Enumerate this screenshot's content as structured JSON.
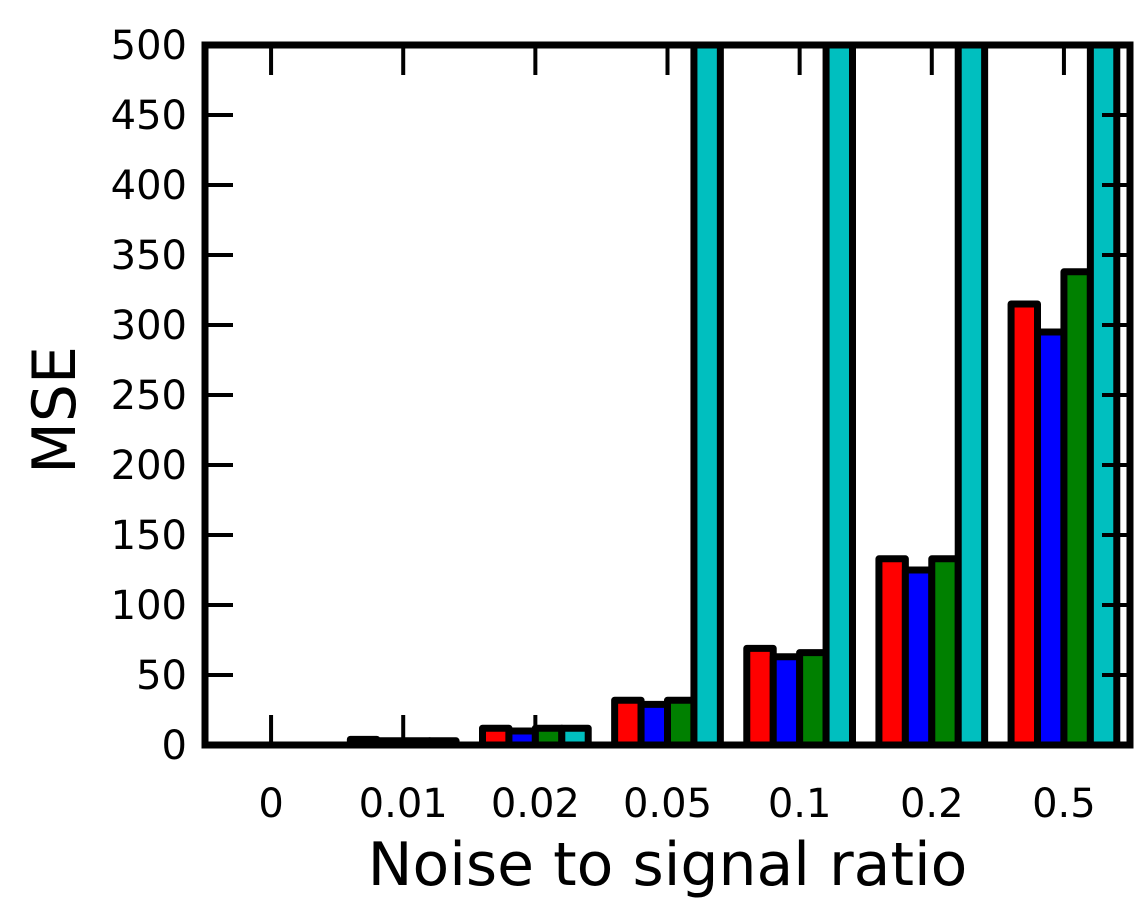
{
  "chart_data": {
    "type": "bar",
    "title": "",
    "xlabel": "Noise to signal ratio",
    "ylabel": "MSE",
    "categories": [
      "0",
      "0.01",
      "0.02",
      "0.05",
      "0.1",
      "0.2",
      "0.5"
    ],
    "ylim": [
      0,
      500
    ],
    "yticks": [
      "0",
      "50",
      "100",
      "150",
      "200",
      "250",
      "300",
      "350",
      "400",
      "450",
      "500"
    ],
    "grid": false,
    "legend": "none",
    "series": [
      {
        "color": "#ff0000",
        "values": [
          0,
          4,
          12,
          32,
          69,
          133,
          315
        ]
      },
      {
        "color": "#0000ff",
        "values": [
          0,
          3,
          10,
          29,
          63,
          125,
          295
        ]
      },
      {
        "color": "#008000",
        "values": [
          0,
          3,
          12,
          32,
          66,
          133,
          338
        ]
      },
      {
        "color": "#00bfbf",
        "values": [
          0,
          3,
          12,
          500,
          500,
          500,
          500
        ]
      }
    ]
  }
}
